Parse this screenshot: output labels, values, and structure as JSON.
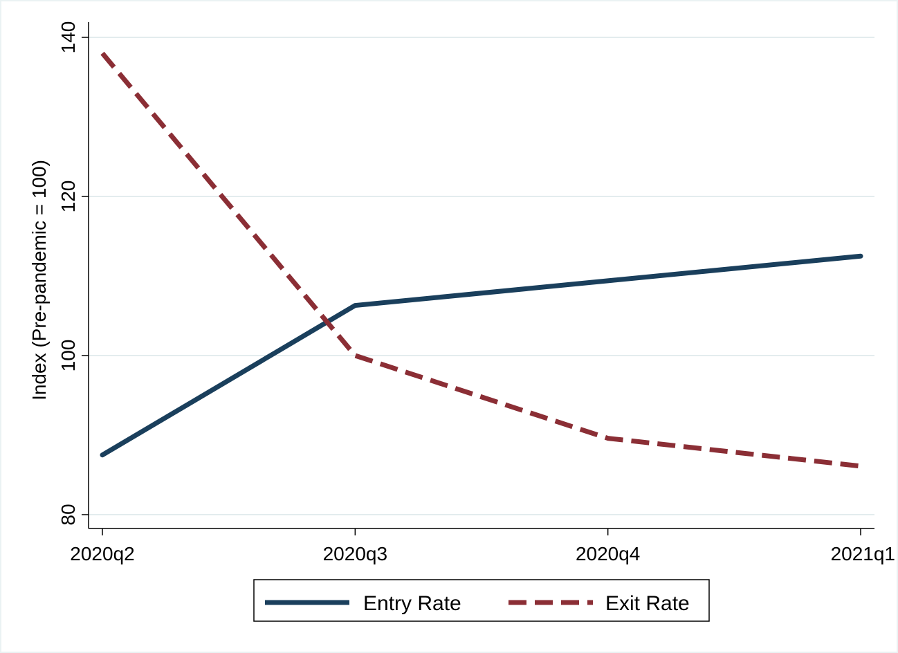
{
  "chart_data": {
    "type": "line",
    "title": "",
    "xlabel": "",
    "ylabel": "Index (Pre-pandemic = 100)",
    "categories": [
      "2020q2",
      "2020q3",
      "2020q4",
      "2021q1"
    ],
    "ylim": [
      80,
      140
    ],
    "yticks": [
      80,
      100,
      120,
      140
    ],
    "grid": true,
    "legend_position": "bottom",
    "series": [
      {
        "name": "Entry Rate",
        "values": [
          87.5,
          106.3,
          109.4,
          112.5
        ],
        "color": "#1a3f5c",
        "style": "solid"
      },
      {
        "name": "Exit Rate",
        "values": [
          138,
          100,
          89.6,
          86.1
        ],
        "color": "#8b2e35",
        "style": "dashed"
      }
    ]
  }
}
